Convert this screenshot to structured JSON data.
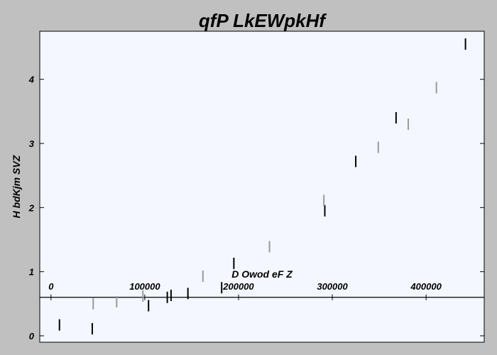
{
  "chart_data": {
    "type": "scatter",
    "title": "qfP LkEWpkHf",
    "xlabel": "D Owod  eF Z",
    "ylabel": "H bdKjm SVZ",
    "xlim": [
      -12000,
      462000
    ],
    "ylim": [
      -0.1,
      4.75
    ],
    "xticks": [
      0,
      100000,
      200000,
      300000,
      400000
    ],
    "xtick_labels": [
      "0",
      "100000",
      "200000",
      "300000",
      "400000"
    ],
    "yticks": [
      0,
      1,
      2,
      3,
      4
    ],
    "ytick_labels": [
      "0",
      "1",
      "2",
      "3",
      "4"
    ],
    "x_axis_at_y": 0.6,
    "grid": false,
    "colors": {
      "background": "#c0c0c0",
      "plot_area": "#f4f7ff",
      "dark_marker": "#000000",
      "light_marker": "#999999"
    },
    "series": [
      {
        "color": "#000000",
        "points": [
          [
            9000,
            0.17
          ],
          [
            44000,
            0.11
          ],
          [
            104000,
            0.47
          ],
          [
            124000,
            0.6
          ],
          [
            128000,
            0.63
          ],
          [
            146000,
            0.66
          ],
          [
            182000,
            0.75
          ],
          [
            195000,
            1.13
          ],
          [
            292000,
            1.95
          ],
          [
            325000,
            2.72
          ],
          [
            368000,
            3.4
          ],
          [
            442000,
            4.55
          ]
        ]
      },
      {
        "color": "#999999",
        "points": [
          [
            45000,
            0.5
          ],
          [
            70000,
            0.53
          ],
          [
            98000,
            0.62
          ],
          [
            162000,
            0.93
          ],
          [
            233000,
            1.39
          ],
          [
            291000,
            2.11
          ],
          [
            349000,
            2.94
          ],
          [
            381000,
            3.3
          ],
          [
            411000,
            3.87
          ]
        ]
      }
    ]
  }
}
